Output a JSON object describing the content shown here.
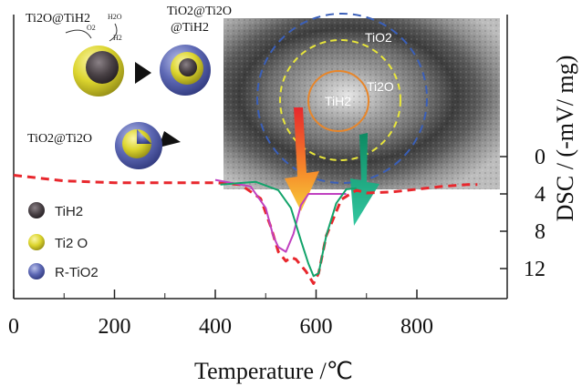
{
  "chart_data": {
    "type": "line",
    "xlabel": "Temperature /℃",
    "ylabel": "DSC / (-mV/ mg)",
    "x_ticks": [
      0,
      200,
      400,
      600,
      800
    ],
    "y_ticks": [
      0,
      4,
      8,
      12
    ],
    "xlim": [
      0,
      940
    ],
    "ylim": [
      -2,
      14
    ],
    "grid": false,
    "series": [
      {
        "color": "#e8272d",
        "style": "dashed",
        "x": [
          0,
          100,
          200,
          300,
          400,
          450,
          490,
          510,
          525,
          540,
          550,
          560,
          580,
          595,
          605,
          620,
          650,
          680,
          700,
          750,
          800,
          850,
          900,
          920
        ],
        "y": [
          2.0,
          2.6,
          2.8,
          2.8,
          2.8,
          3.0,
          4.5,
          7.5,
          10.2,
          11.2,
          10.8,
          11.0,
          12.3,
          13.6,
          12.5,
          8.5,
          4.6,
          3.6,
          3.9,
          3.8,
          3.5,
          3.2,
          3.0,
          3.0
        ]
      },
      {
        "color": "#c040c0",
        "style": "solid",
        "x": [
          400,
          470,
          500,
          515,
          525,
          540,
          555,
          570,
          585,
          610,
          660
        ],
        "y": [
          2.5,
          3.2,
          5.5,
          8.5,
          9.7,
          10.2,
          8.3,
          5.2,
          4.0,
          4.0,
          4.0
        ]
      },
      {
        "color": "#12a36a",
        "style": "solid",
        "x": [
          410,
          480,
          525,
          550,
          570,
          585,
          595,
          605,
          620,
          640,
          660,
          680
        ],
        "y": [
          3.0,
          2.7,
          3.6,
          5.5,
          9.0,
          11.5,
          12.8,
          12.5,
          8.5,
          5.0,
          3.5,
          3.4
        ]
      }
    ]
  },
  "legend": [
    {
      "label": "TiH2",
      "color": "#4a4246",
      "icon": "tih2-sphere-icon"
    },
    {
      "label": "Ti2 O",
      "color": "#d9d32c",
      "icon": "ti2o-sphere-icon"
    },
    {
      "label": "R-TiO2",
      "color": "#5d68b4",
      "icon": "rtio2-sphere-icon"
    }
  ],
  "scheme": {
    "label_start": "Ti2O@TiH2",
    "label_core_shell": "TiO2@Ti2O",
    "label_core_shell_2": "@TiH2",
    "label_end": "TiO2@Ti2O",
    "reagent_o2": "O2",
    "reagent_h2o": "H2O",
    "reagent_h2": "H2"
  },
  "tem_inset": {
    "label_tio2": "TiO2",
    "label_ti2o": "Ti2O",
    "label_tih2": "TiH2"
  }
}
